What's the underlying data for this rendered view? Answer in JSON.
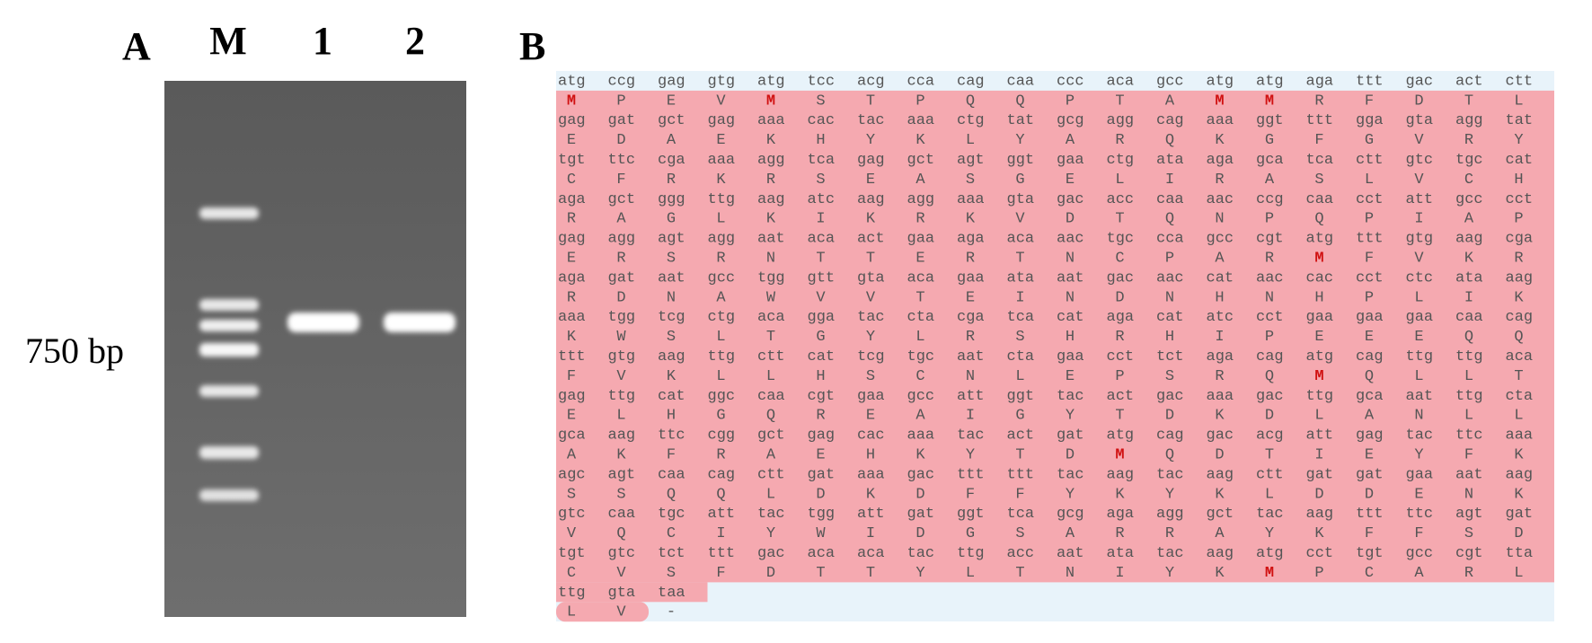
{
  "figure_a": {
    "panel_label": "A",
    "lane_labels": [
      "M",
      "1",
      "2"
    ],
    "size_label": "750 bp"
  },
  "figure_b": {
    "panel_label": "B",
    "rows": [
      {
        "codons": [
          "atg",
          "ccg",
          "gag",
          "gtg",
          "atg",
          "tcc",
          "acg",
          "cca",
          "cag",
          "caa",
          "ccc",
          "aca",
          "gcc",
          "atg",
          "atg",
          "aga",
          "ttt",
          "gac",
          "act",
          "ctt"
        ],
        "residues": [
          "M",
          "P",
          "E",
          "V",
          "M",
          "S",
          "T",
          "P",
          "Q",
          "Q",
          "P",
          "T",
          "A",
          "M",
          "M",
          "R",
          "F",
          "D",
          "T",
          "L"
        ]
      },
      {
        "codons": [
          "gag",
          "gat",
          "gct",
          "gag",
          "aaa",
          "cac",
          "tac",
          "aaa",
          "ctg",
          "tat",
          "gcg",
          "agg",
          "cag",
          "aaa",
          "ggt",
          "ttt",
          "gga",
          "gta",
          "agg",
          "tat"
        ],
        "residues": [
          "E",
          "D",
          "A",
          "E",
          "K",
          "H",
          "Y",
          "K",
          "L",
          "Y",
          "A",
          "R",
          "Q",
          "K",
          "G",
          "F",
          "G",
          "V",
          "R",
          "Y"
        ]
      },
      {
        "codons": [
          "tgt",
          "ttc",
          "cga",
          "aaa",
          "agg",
          "tca",
          "gag",
          "gct",
          "agt",
          "ggt",
          "gaa",
          "ctg",
          "ata",
          "aga",
          "gca",
          "tca",
          "ctt",
          "gtc",
          "tgc",
          "cat"
        ],
        "residues": [
          "C",
          "F",
          "R",
          "K",
          "R",
          "S",
          "E",
          "A",
          "S",
          "G",
          "E",
          "L",
          "I",
          "R",
          "A",
          "S",
          "L",
          "V",
          "C",
          "H"
        ]
      },
      {
        "codons": [
          "aga",
          "gct",
          "ggg",
          "ttg",
          "aag",
          "atc",
          "aag",
          "agg",
          "aaa",
          "gta",
          "gac",
          "acc",
          "caa",
          "aac",
          "ccg",
          "caa",
          "cct",
          "att",
          "gcc",
          "cct"
        ],
        "residues": [
          "R",
          "A",
          "G",
          "L",
          "K",
          "I",
          "K",
          "R",
          "K",
          "V",
          "D",
          "T",
          "Q",
          "N",
          "P",
          "Q",
          "P",
          "I",
          "A",
          "P"
        ]
      },
      {
        "codons": [
          "gag",
          "agg",
          "agt",
          "agg",
          "aat",
          "aca",
          "act",
          "gaa",
          "aga",
          "aca",
          "aac",
          "tgc",
          "cca",
          "gcc",
          "cgt",
          "atg",
          "ttt",
          "gtg",
          "aag",
          "cga"
        ],
        "residues": [
          "E",
          "R",
          "S",
          "R",
          "N",
          "T",
          "T",
          "E",
          "R",
          "T",
          "N",
          "C",
          "P",
          "A",
          "R",
          "M",
          "F",
          "V",
          "K",
          "R"
        ]
      },
      {
        "codons": [
          "aga",
          "gat",
          "aat",
          "gcc",
          "tgg",
          "gtt",
          "gta",
          "aca",
          "gaa",
          "ata",
          "aat",
          "gac",
          "aac",
          "cat",
          "aac",
          "cac",
          "cct",
          "ctc",
          "ata",
          "aag"
        ],
        "residues": [
          "R",
          "D",
          "N",
          "A",
          "W",
          "V",
          "V",
          "T",
          "E",
          "I",
          "N",
          "D",
          "N",
          "H",
          "N",
          "H",
          "P",
          "L",
          "I",
          "K"
        ]
      },
      {
        "codons": [
          "aaa",
          "tgg",
          "tcg",
          "ctg",
          "aca",
          "gga",
          "tac",
          "cta",
          "cga",
          "tca",
          "cat",
          "aga",
          "cat",
          "atc",
          "cct",
          "gaa",
          "gaa",
          "gaa",
          "caa",
          "cag"
        ],
        "residues": [
          "K",
          "W",
          "S",
          "L",
          "T",
          "G",
          "Y",
          "L",
          "R",
          "S",
          "H",
          "R",
          "H",
          "I",
          "P",
          "E",
          "E",
          "E",
          "Q",
          "Q"
        ]
      },
      {
        "codons": [
          "ttt",
          "gtg",
          "aag",
          "ttg",
          "ctt",
          "cat",
          "tcg",
          "tgc",
          "aat",
          "cta",
          "gaa",
          "cct",
          "tct",
          "aga",
          "cag",
          "atg",
          "cag",
          "ttg",
          "ttg",
          "aca"
        ],
        "residues": [
          "F",
          "V",
          "K",
          "L",
          "L",
          "H",
          "S",
          "C",
          "N",
          "L",
          "E",
          "P",
          "S",
          "R",
          "Q",
          "M",
          "Q",
          "L",
          "L",
          "T"
        ]
      },
      {
        "codons": [
          "gag",
          "ttg",
          "cat",
          "ggc",
          "caa",
          "cgt",
          "gaa",
          "gcc",
          "att",
          "ggt",
          "tac",
          "act",
          "gac",
          "aaa",
          "gac",
          "ttg",
          "gca",
          "aat",
          "ttg",
          "cta"
        ],
        "residues": [
          "E",
          "L",
          "H",
          "G",
          "Q",
          "R",
          "E",
          "A",
          "I",
          "G",
          "Y",
          "T",
          "D",
          "K",
          "D",
          "L",
          "A",
          "N",
          "L",
          "L"
        ]
      },
      {
        "codons": [
          "gca",
          "aag",
          "ttc",
          "cgg",
          "gct",
          "gag",
          "cac",
          "aaa",
          "tac",
          "act",
          "gat",
          "atg",
          "cag",
          "gac",
          "acg",
          "att",
          "gag",
          "tac",
          "ttc",
          "aaa"
        ],
        "residues": [
          "A",
          "K",
          "F",
          "R",
          "A",
          "E",
          "H",
          "K",
          "Y",
          "T",
          "D",
          "M",
          "Q",
          "D",
          "T",
          "I",
          "E",
          "Y",
          "F",
          "K"
        ]
      },
      {
        "codons": [
          "agc",
          "agt",
          "caa",
          "cag",
          "ctt",
          "gat",
          "aaa",
          "gac",
          "ttt",
          "ttt",
          "tac",
          "aag",
          "tac",
          "aag",
          "ctt",
          "gat",
          "gat",
          "gaa",
          "aat",
          "aag"
        ],
        "residues": [
          "S",
          "S",
          "Q",
          "Q",
          "L",
          "D",
          "K",
          "D",
          "F",
          "F",
          "Y",
          "K",
          "Y",
          "K",
          "L",
          "D",
          "D",
          "E",
          "N",
          "K"
        ]
      },
      {
        "codons": [
          "gtc",
          "caa",
          "tgc",
          "att",
          "tac",
          "tgg",
          "att",
          "gat",
          "ggt",
          "tca",
          "gcg",
          "aga",
          "agg",
          "gct",
          "tac",
          "aag",
          "ttt",
          "ttc",
          "agt",
          "gat"
        ],
        "residues": [
          "V",
          "Q",
          "C",
          "I",
          "Y",
          "W",
          "I",
          "D",
          "G",
          "S",
          "A",
          "R",
          "R",
          "A",
          "Y",
          "K",
          "F",
          "F",
          "S",
          "D"
        ]
      },
      {
        "codons": [
          "tgt",
          "gtc",
          "tct",
          "ttt",
          "gac",
          "aca",
          "aca",
          "tac",
          "ttg",
          "acc",
          "aat",
          "ata",
          "tac",
          "aag",
          "atg",
          "cct",
          "tgt",
          "gcc",
          "cgt",
          "tta"
        ],
        "residues": [
          "C",
          "V",
          "S",
          "F",
          "D",
          "T",
          "T",
          "Y",
          "L",
          "T",
          "N",
          "I",
          "Y",
          "K",
          "M",
          "P",
          "C",
          "A",
          "R",
          "L"
        ]
      },
      {
        "codons": [
          "ttg",
          "gta",
          "taa"
        ],
        "residues": [
          "L",
          "V",
          "-"
        ]
      }
    ]
  }
}
